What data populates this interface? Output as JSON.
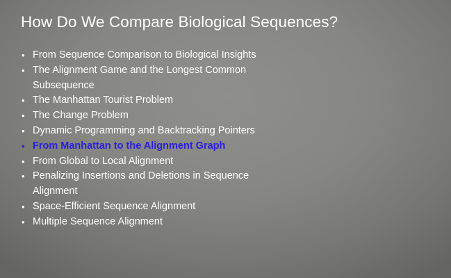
{
  "slide": {
    "title": "How Do We Compare Biological Sequences?",
    "bullet_glyph": "•",
    "items": [
      {
        "label": "From Sequence Comparison to Biological Insights",
        "current": false
      },
      {
        "label": "The Alignment Game and the Longest Common Subsequence",
        "current": false
      },
      {
        "label": "The Manhattan Tourist Problem",
        "current": false
      },
      {
        "label": "The Change Problem",
        "current": false
      },
      {
        "label": "Dynamic Programming and Backtracking Pointers",
        "current": false
      },
      {
        "label": "From Manhattan to the Alignment Graph",
        "current": true
      },
      {
        "label": "From Global to Local Alignment",
        "current": false
      },
      {
        "label": "Penalizing Insertions and Deletions in Sequence Alignment",
        "current": false
      },
      {
        "label": "Space-Efficient Sequence Alignment",
        "current": false
      },
      {
        "label": "Multiple Sequence Alignment",
        "current": false
      }
    ],
    "colors": {
      "background": "#868682",
      "text": "#ffffff",
      "current_item": "#2a1fe0"
    }
  }
}
